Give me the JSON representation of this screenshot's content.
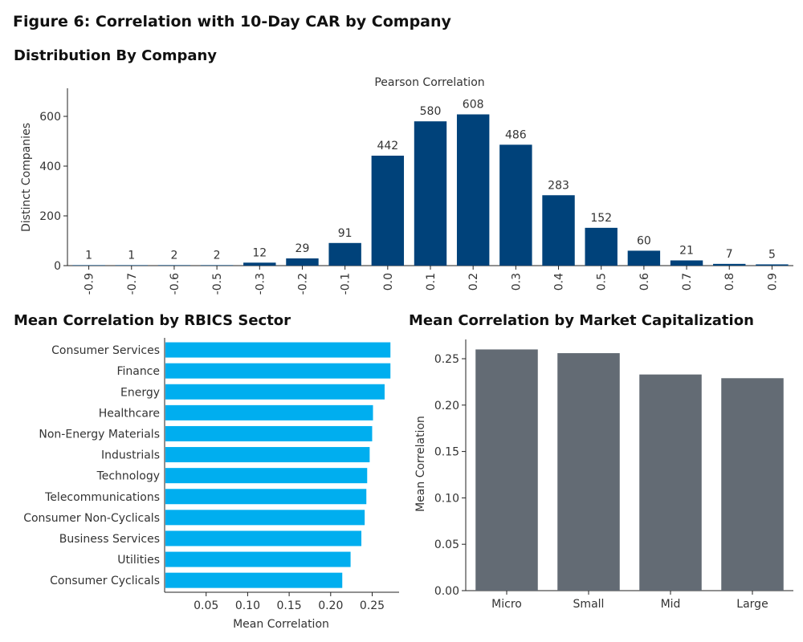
{
  "figure_title": "Figure 6: Correlation with 10-Day CAR by Company",
  "colors": {
    "histogram_bar": "#00427a",
    "sector_bar": "#00aeef",
    "mcap_bar": "#636b74",
    "axis": "#222222"
  },
  "chart_data": [
    {
      "type": "bar",
      "section_title": "Distribution By Company",
      "title": "Pearson Correlation",
      "xlabel": "",
      "ylabel": "Distinct Companies",
      "ylim": [
        0,
        720
      ],
      "yticks": [
        0,
        200,
        400,
        600
      ],
      "categories": [
        "-0.9",
        "-0.7",
        "-0.6",
        "-0.5",
        "-0.3",
        "-0.2",
        "-0.1",
        "0.0",
        "0.1",
        "0.2",
        "0.3",
        "0.4",
        "0.5",
        "0.6",
        "0.7",
        "0.8",
        "0.9"
      ],
      "values": [
        1,
        1,
        2,
        2,
        12,
        29,
        91,
        442,
        580,
        608,
        486,
        283,
        152,
        60,
        21,
        7,
        5
      ]
    },
    {
      "type": "bar",
      "orientation": "horizontal",
      "title": "Mean Correlation by RBICS Sector",
      "xlabel": "Mean Correlation",
      "ylabel": "",
      "xlim": [
        0,
        0.29
      ],
      "xticks": [
        "0.05",
        "0.10",
        "0.15",
        "0.20",
        "0.25"
      ],
      "categories": [
        "Consumer Services",
        "Finance",
        "Energy",
        "Healthcare",
        "Non-Energy Materials",
        "Industrials",
        "Technology",
        "Telecommunications",
        "Consumer Non-Cyclicals",
        "Business Services",
        "Utilities",
        "Consumer Cyclicals"
      ],
      "values": [
        0.271,
        0.271,
        0.264,
        0.25,
        0.249,
        0.246,
        0.243,
        0.242,
        0.24,
        0.236,
        0.223,
        0.213
      ]
    },
    {
      "type": "bar",
      "title": "Mean Correlation by Market Capitalization",
      "xlabel": "",
      "ylabel": "Mean Correlation",
      "ylim": [
        0,
        0.27
      ],
      "yticks": [
        "0.00",
        "0.05",
        "0.10",
        "0.15",
        "0.20",
        "0.25"
      ],
      "categories": [
        "Micro",
        "Small",
        "Mid",
        "Large"
      ],
      "values": [
        0.26,
        0.256,
        0.233,
        0.229
      ]
    }
  ]
}
